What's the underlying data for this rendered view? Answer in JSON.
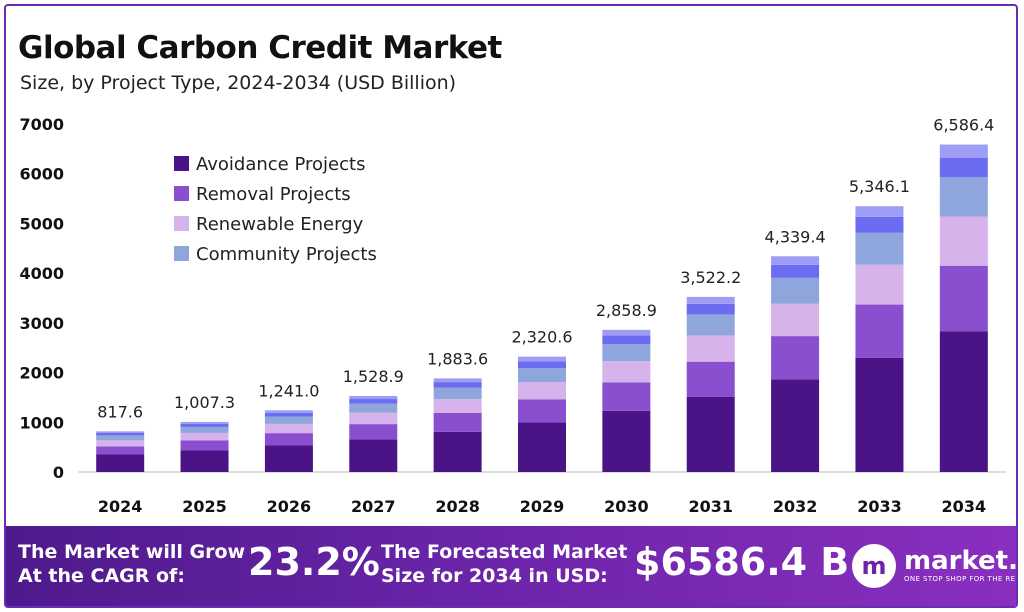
{
  "title": "Global Carbon Credit Market",
  "subtitle": "Size, by Project Type, 2024-2034 (USD Billion)",
  "chart_data": {
    "type": "bar",
    "stacked": true,
    "categories": [
      "2024",
      "2025",
      "2026",
      "2027",
      "2028",
      "2029",
      "2030",
      "2031",
      "2032",
      "2033",
      "2034"
    ],
    "series": [
      {
        "name": "Avoidance Projects",
        "color": "#4a1486",
        "values": [
          351.6,
          433.1,
          533.6,
          657.4,
          809.9,
          997.9,
          1229.3,
          1514.5,
          1865.9,
          2298.8,
          2832.2
        ]
      },
      {
        "name": "Removal Projects",
        "color": "#8a4fcf",
        "values": [
          163.5,
          201.5,
          248.2,
          305.8,
          376.7,
          464.1,
          571.8,
          704.4,
          867.9,
          1069.2,
          1317.3
        ]
      },
      {
        "name": "Renewable Energy",
        "color": "#d7b3ec",
        "values": [
          122.6,
          151.1,
          186.2,
          229.3,
          282.5,
          348.1,
          428.8,
          528.3,
          650.9,
          801.9,
          988.0
        ]
      },
      {
        "name": "Community Projects",
        "color": "#8fa6dc",
        "values": [
          98.1,
          120.9,
          148.9,
          183.5,
          226.0,
          278.5,
          343.1,
          422.7,
          520.7,
          641.5,
          790.4
        ]
      },
      {
        "color": "#6b6cf0",
        "values": [
          49.1,
          60.4,
          74.5,
          91.7,
          113.0,
          139.2,
          171.5,
          211.3,
          260.4,
          320.8,
          395.2
        ]
      },
      {
        "color": "#9d9df5",
        "values": [
          32.7,
          40.3,
          49.6,
          61.2,
          75.3,
          92.8,
          114.4,
          140.9,
          173.6,
          213.8,
          263.5
        ]
      }
    ],
    "totals": [
      817.6,
      1007.3,
      1241.0,
      1528.9,
      1883.6,
      2320.6,
      2858.9,
      3522.2,
      4339.4,
      5346.1,
      6586.4
    ],
    "total_labels": [
      "817.6",
      "1,007.3",
      "1,241.0",
      "1,528.9",
      "1,883.6",
      "2,320.6",
      "2,858.9",
      "3,522.2",
      "4,339.4",
      "5,346.1",
      "6,586.4"
    ],
    "ylim": [
      0,
      7000
    ],
    "yticks": [
      0,
      1000,
      2000,
      3000,
      4000,
      5000,
      6000,
      7000
    ],
    "xlabel": "",
    "ylabel": "",
    "grid": false,
    "legend_position": "top-left",
    "legend_series": [
      0,
      1,
      2,
      3
    ]
  },
  "banner": {
    "cagr_line1": "The Market will Grow",
    "cagr_line2": "At the CAGR of:",
    "cagr_value": "23.2%",
    "forecast_line1": "The Forecasted Market",
    "forecast_line2": "Size for 2034 in USD:",
    "forecast_value": "$6586.4 B",
    "logo_mark": "m",
    "logo_name": "market.us",
    "logo_tagline": "ONE STOP SHOP FOR THE REPORTS"
  }
}
